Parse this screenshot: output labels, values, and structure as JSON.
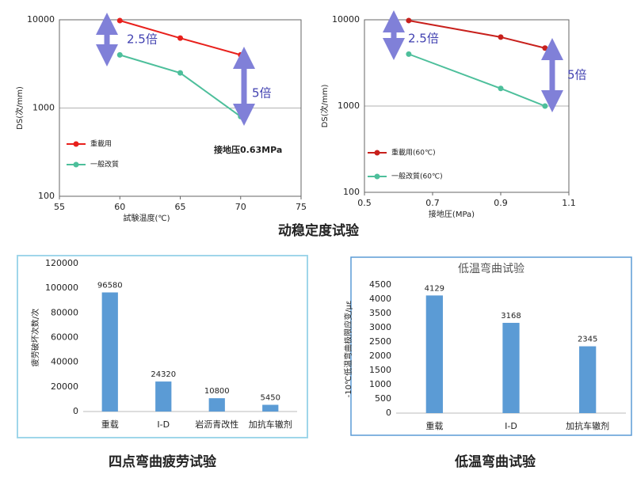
{
  "chart_data": [
    {
      "type": "line",
      "y_label": "DS(次/mm)",
      "x_label": "試験温度(℃)",
      "x": [
        60,
        65,
        70
      ],
      "series": [
        {
          "name": "重載用",
          "color": "#e8201c",
          "values": [
            9800,
            6200,
            4000
          ]
        },
        {
          "name": "一般改質",
          "color": "#4dbf9b",
          "values": [
            4000,
            2500,
            800
          ]
        }
      ],
      "xlim": [
        55,
        75
      ],
      "xticks": [
        55,
        60,
        65,
        70,
        75
      ],
      "ylim": [
        100,
        10000
      ],
      "yticks": [
        100,
        1000,
        10000
      ],
      "log_y": true,
      "grid": true,
      "legend": "lower left",
      "annotations": [
        "2.5倍",
        "5倍",
        "接地压0.63MPa"
      ]
    },
    {
      "type": "line",
      "y_label": "DS(次/mm)",
      "x_label": "接地圧(MPa)",
      "x": [
        0.63,
        0.9,
        1.03
      ],
      "series": [
        {
          "name": "重載用(60℃)",
          "color": "#c8201c",
          "values": [
            9800,
            6300,
            4700
          ]
        },
        {
          "name": "一般改質(60℃)",
          "color": "#4dbf9b",
          "values": [
            4000,
            1600,
            1000
          ]
        }
      ],
      "xlim": [
        0.5,
        1.1
      ],
      "xticks": [
        0.5,
        0.7,
        0.9,
        1.1
      ],
      "ylim": [
        100,
        10000
      ],
      "yticks": [
        100,
        1000,
        10000
      ],
      "log_y": true,
      "grid": true,
      "legend": "lower left",
      "annotations": [
        "2.5倍",
        "5倍"
      ]
    },
    {
      "type": "bar",
      "y_label": "疲劳破坏次数/次",
      "categories": [
        "重载",
        "I-D",
        "岩沥青改性",
        "加抗车辙剂"
      ],
      "values": [
        96580,
        24320,
        10800,
        5450
      ],
      "color": "#5b9bd5",
      "ylim": [
        0,
        120000
      ],
      "yticks": [
        0,
        20000,
        40000,
        60000,
        80000,
        100000,
        120000
      ],
      "grid": false
    },
    {
      "type": "bar",
      "title": "低温弯曲试验",
      "y_label": "-10℃低温弯曲极限应变/με",
      "categories": [
        "重载",
        "I-D",
        "加抗车辙剂"
      ],
      "values": [
        4129,
        3168,
        2345
      ],
      "color": "#5b9bd5",
      "ylim": [
        0,
        4500
      ],
      "yticks": [
        0,
        500,
        1000,
        1500,
        2000,
        2500,
        3000,
        3500,
        4000,
        4500
      ],
      "grid": false
    }
  ],
  "captions": [
    "动稳定度试验",
    "四点弯曲疲劳试验",
    "低温弯曲试验"
  ]
}
